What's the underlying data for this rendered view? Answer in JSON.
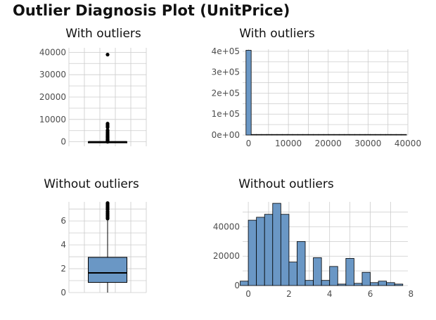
{
  "title": "Outlier Diagnosis Plot (UnitPrice)",
  "chart_data": [
    {
      "type": "box",
      "title": "With outliers",
      "ylim": [
        -2000,
        42000
      ],
      "yticks": [
        0,
        10000,
        20000,
        30000,
        40000
      ],
      "ytick_labels": [
        "0",
        "10000",
        "20000",
        "30000",
        "40000"
      ],
      "box": {
        "min": 0,
        "q1": 1.25,
        "median": 2.08,
        "q3": 4.13,
        "max": 8.45
      },
      "outliers": [
        38970,
        8142,
        7500,
        6900,
        6500,
        5200,
        4500,
        4000,
        3600,
        3200,
        2800,
        2500,
        2200,
        2000,
        1800,
        1500,
        1300,
        1100,
        900,
        700,
        500,
        400,
        300,
        200,
        150,
        100,
        60,
        40,
        20
      ],
      "fill": "#000000",
      "grid": true
    },
    {
      "type": "histogram",
      "title": "With outliers",
      "xlim": [
        -1500,
        40000
      ],
      "ylim": [
        0,
        410000
      ],
      "xticks": [
        0,
        10000,
        20000,
        30000,
        40000
      ],
      "xtick_labels": [
        "0",
        "10000",
        "20000",
        "30000",
        "40000"
      ],
      "yticks": [
        0,
        100000,
        200000,
        300000,
        400000
      ],
      "ytick_labels": [
        "0e+00",
        "1e+05",
        "2e+05",
        "3e+05",
        "4e+05"
      ],
      "bin_width": 1300,
      "bins": [
        {
          "x": 0,
          "count": 405000
        },
        {
          "x": 1300,
          "count": 60
        },
        {
          "x": 2600,
          "count": 30
        },
        {
          "x": 3900,
          "count": 20
        },
        {
          "x": 5200,
          "count": 10
        },
        {
          "x": 6500,
          "count": 8
        },
        {
          "x": 7800,
          "count": 5
        },
        {
          "x": 9100,
          "count": 3
        },
        {
          "x": 10400,
          "count": 1
        },
        {
          "x": 11700,
          "count": 0
        },
        {
          "x": 13000,
          "count": 0
        },
        {
          "x": 14300,
          "count": 0
        },
        {
          "x": 15600,
          "count": 0
        },
        {
          "x": 16900,
          "count": 0
        },
        {
          "x": 18200,
          "count": 0
        },
        {
          "x": 19500,
          "count": 0
        },
        {
          "x": 20800,
          "count": 0
        },
        {
          "x": 22100,
          "count": 0
        },
        {
          "x": 23400,
          "count": 0
        },
        {
          "x": 24700,
          "count": 0
        },
        {
          "x": 26000,
          "count": 0
        },
        {
          "x": 27300,
          "count": 0
        },
        {
          "x": 28600,
          "count": 0
        },
        {
          "x": 29900,
          "count": 0
        },
        {
          "x": 31200,
          "count": 0
        },
        {
          "x": 32500,
          "count": 0
        },
        {
          "x": 33800,
          "count": 0
        },
        {
          "x": 35100,
          "count": 0
        },
        {
          "x": 36400,
          "count": 0
        },
        {
          "x": 37700,
          "count": 0
        },
        {
          "x": 39000,
          "count": 1
        }
      ],
      "fill": "#6a97c5",
      "grid": true
    },
    {
      "type": "box",
      "title": "Without outliers",
      "ylim": [
        0,
        7.6
      ],
      "yticks": [
        0,
        2,
        4,
        6
      ],
      "ytick_labels": [
        "0",
        "2",
        "4",
        "6"
      ],
      "box": {
        "min": 0,
        "q1": 0.85,
        "median": 1.65,
        "q3": 2.95,
        "max": 6.1
      },
      "outliers": [
        6.2,
        6.3,
        6.4,
        6.45,
        6.5,
        6.6,
        6.65,
        6.75,
        6.8,
        6.95,
        7.0,
        7.08,
        7.15,
        7.25,
        7.35,
        7.45,
        7.5
      ],
      "fill": "#6a97c5",
      "grid": true
    },
    {
      "type": "histogram",
      "title": "Without outliers",
      "xlim": [
        -0.28,
        7.85
      ],
      "ylim": [
        0,
        57000
      ],
      "xticks": [
        0,
        2,
        4,
        6,
        8
      ],
      "xtick_labels": [
        "0",
        "2",
        "4",
        "6",
        "8"
      ],
      "yticks": [
        0,
        20000,
        40000
      ],
      "ytick_labels": [
        "0",
        "20000",
        "40000"
      ],
      "bin_width": 0.4,
      "bins": [
        {
          "x": -0.2,
          "count": 3000
        },
        {
          "x": 0.2,
          "count": 44500
        },
        {
          "x": 0.6,
          "count": 46500
        },
        {
          "x": 1.0,
          "count": 48500
        },
        {
          "x": 1.4,
          "count": 56000
        },
        {
          "x": 1.8,
          "count": 48500
        },
        {
          "x": 2.2,
          "count": 16000
        },
        {
          "x": 2.6,
          "count": 30000
        },
        {
          "x": 3.0,
          "count": 3500
        },
        {
          "x": 3.4,
          "count": 19000
        },
        {
          "x": 3.8,
          "count": 3500
        },
        {
          "x": 4.2,
          "count": 13000
        },
        {
          "x": 4.6,
          "count": 1000
        },
        {
          "x": 5.0,
          "count": 18500
        },
        {
          "x": 5.4,
          "count": 1500
        },
        {
          "x": 5.8,
          "count": 9000
        },
        {
          "x": 6.2,
          "count": 2000
        },
        {
          "x": 6.6,
          "count": 3000
        },
        {
          "x": 7.0,
          "count": 2000
        },
        {
          "x": 7.4,
          "count": 1000
        }
      ],
      "fill": "#6a97c5",
      "grid": true
    }
  ]
}
